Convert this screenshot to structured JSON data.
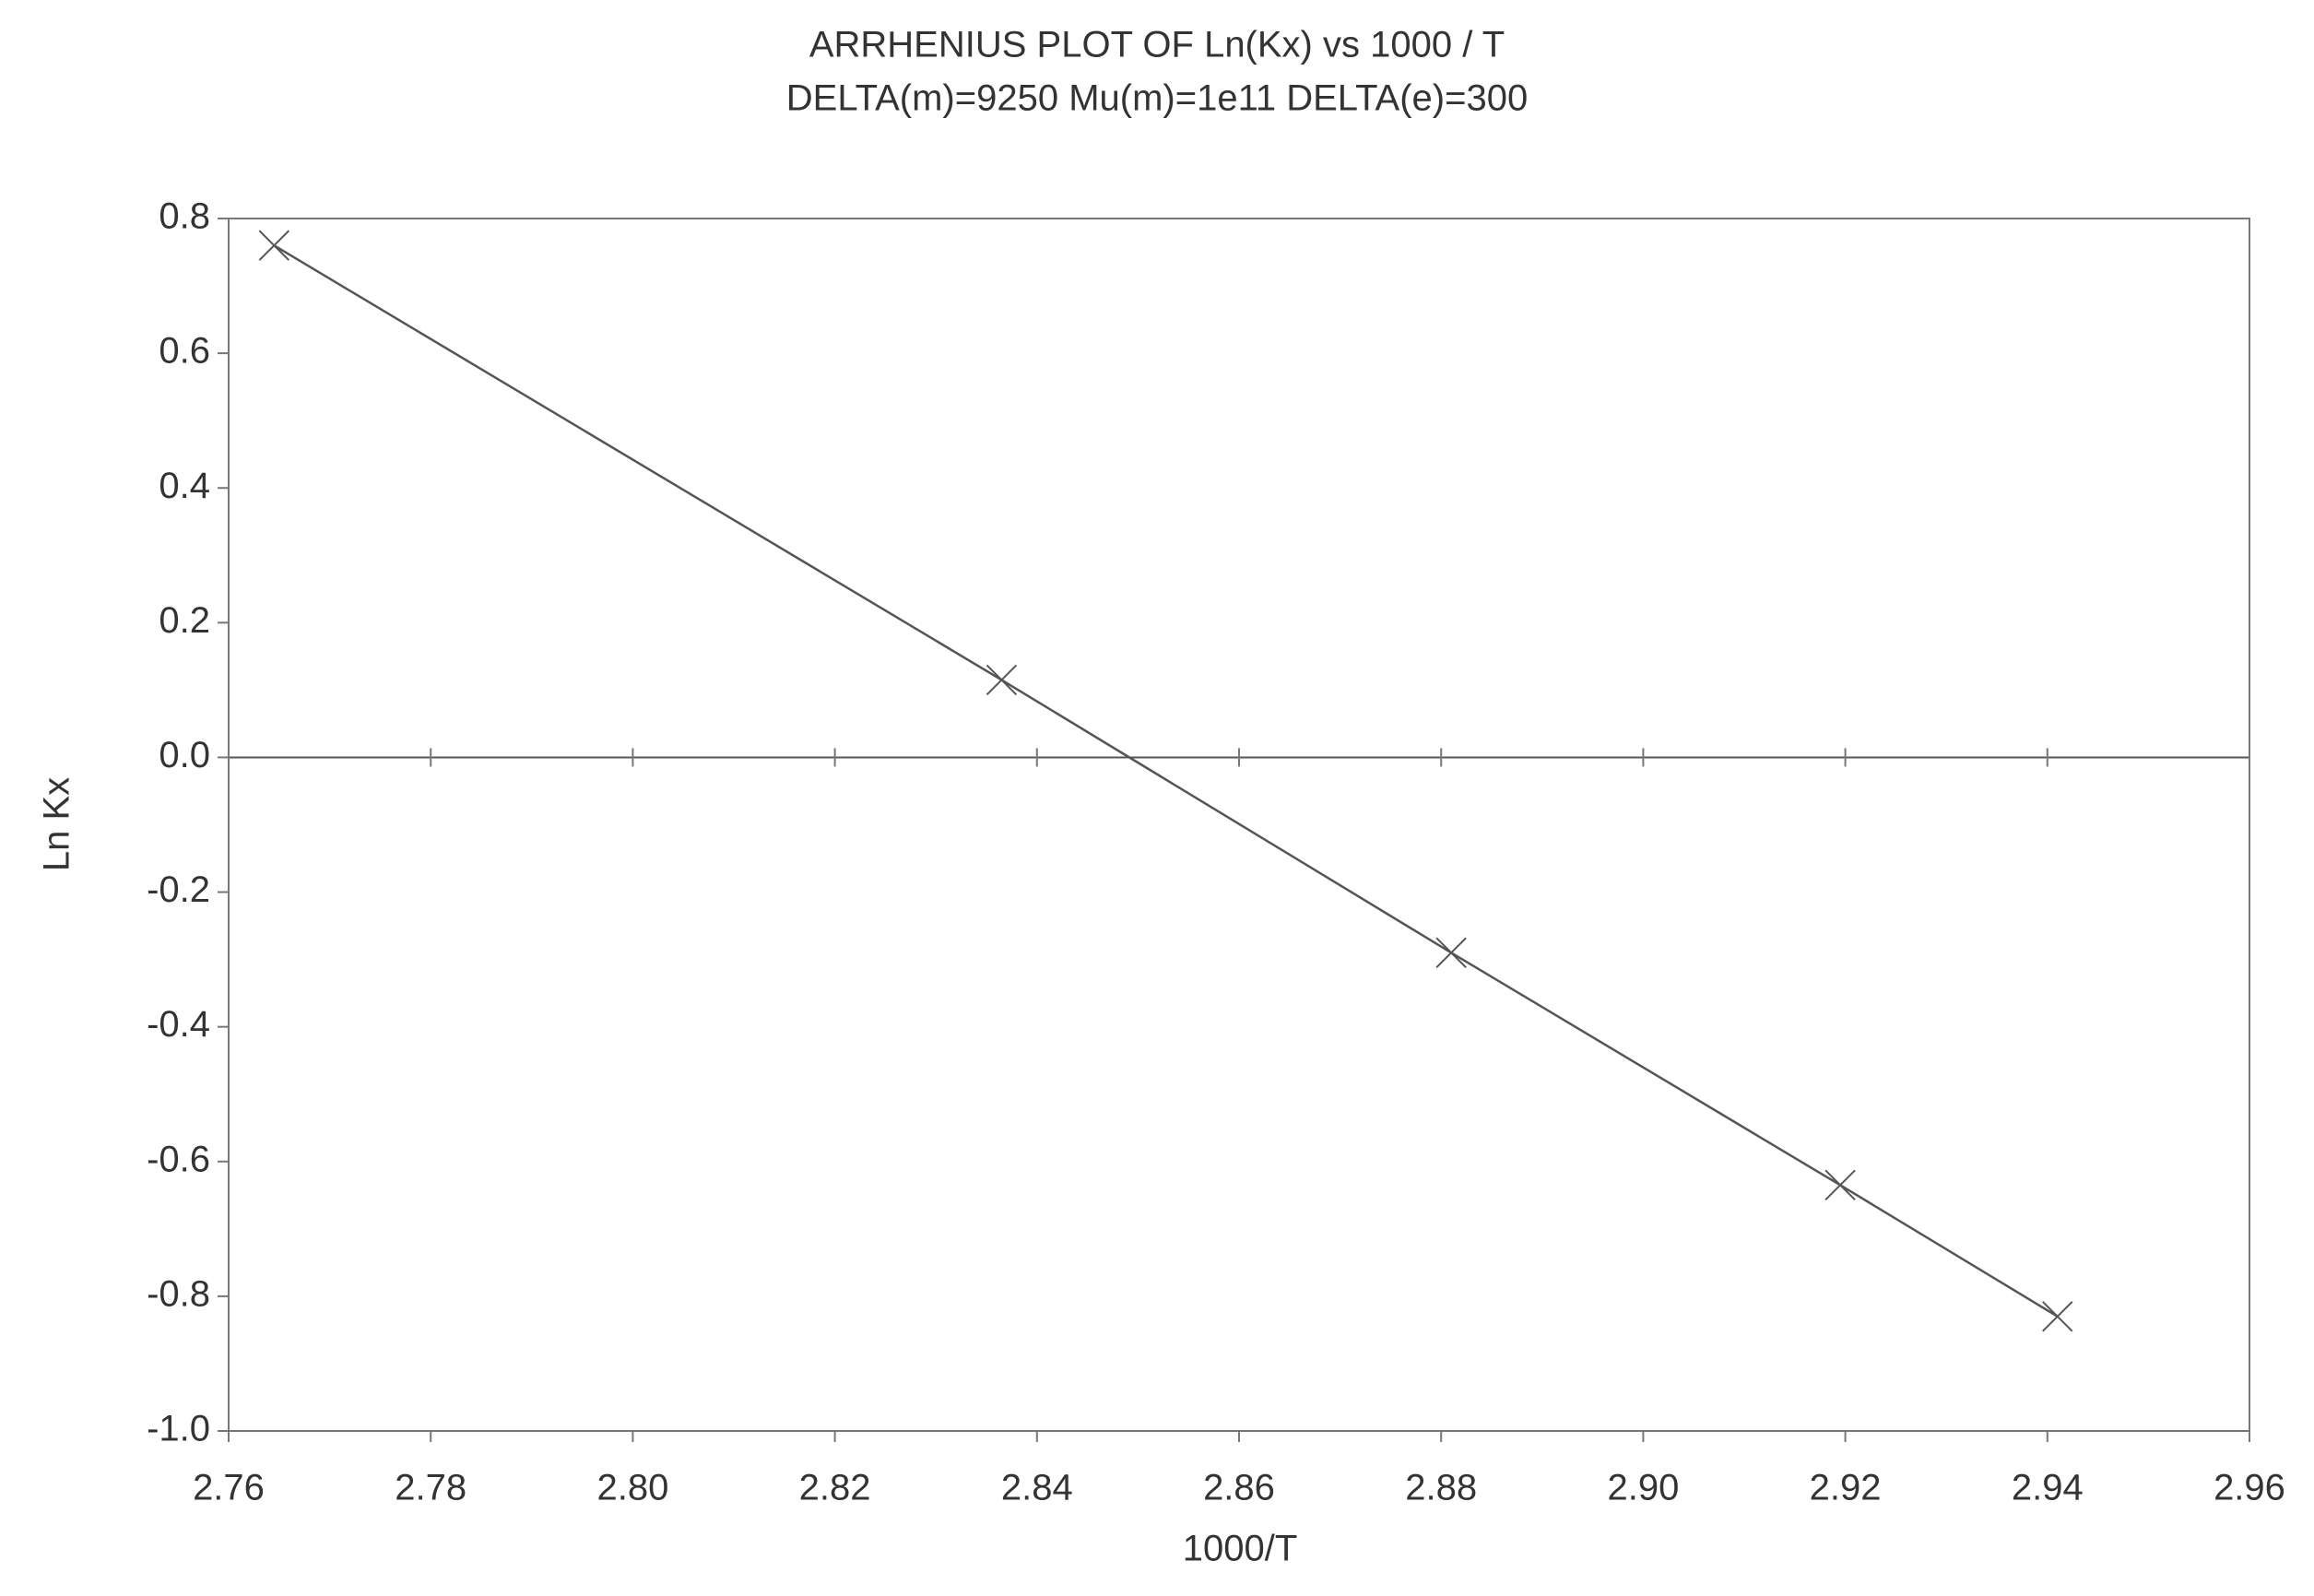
{
  "chart_data": {
    "type": "line",
    "title": "ARRHENIUS PLOT OF Ln(Kx) vs 1000 / T",
    "subtitle": "DELTA(m)=9250 Mu(m)=1e11 DELTA(e)=300",
    "x_label": "1000/T",
    "y_label": "Ln Kx",
    "x": [
      2.7645,
      2.8365,
      2.881,
      2.9195,
      2.941
    ],
    "series": [
      {
        "color": "#555555",
        "marker": "x",
        "values": [
          0.76,
          0.115,
          -0.29,
          -0.635,
          -0.83
        ]
      }
    ],
    "xlim": [
      2.76,
      2.96
    ],
    "xticks": [
      2.76,
      2.78,
      {
        "value": 2.8,
        "label": "2.80"
      },
      2.82,
      2.84,
      2.86,
      2.88,
      {
        "value": 2.9,
        "label": "2.90"
      },
      2.92,
      2.94,
      2.96
    ],
    "ylim": [
      -1,
      0.8
    ],
    "yticks": [
      {
        "value": -1,
        "label": "-1.0"
      },
      -0.8,
      -0.6,
      -0.4,
      -0.2,
      {
        "value": 0,
        "label": "0.0"
      },
      0.2,
      0.4,
      0.6,
      0.8
    ],
    "zero_line": true
  }
}
